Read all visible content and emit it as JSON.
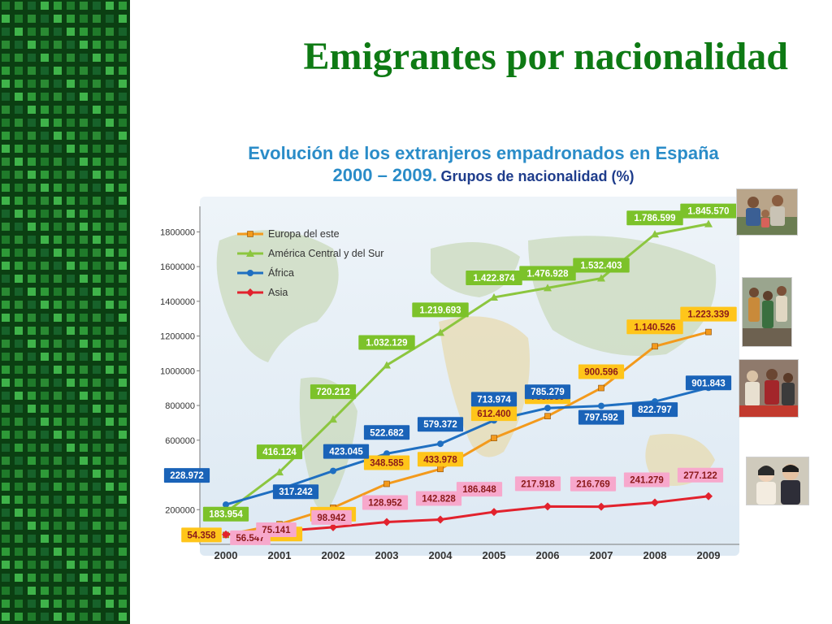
{
  "slide": {
    "title": "Emigrantes por nacionalidad"
  },
  "chart_heading": {
    "line1": "Evolución de los extranjeros empadronados en España",
    "line2_years": "2000 – 2009.",
    "line2_sub": "Grupos de nacionalidad (%)"
  },
  "colors": {
    "title_green": "#0e7a14",
    "europa": "#f39a1c",
    "america": "#8cc63f",
    "africa": "#1f6fc1",
    "asia": "#e2222d",
    "label_europa_bg": "#ffc51a",
    "label_america_bg": "#7cc22a",
    "label_africa_bg": "#1a63b8",
    "label_asia_bg": "#f7a8cc"
  },
  "chart_data": {
    "type": "line",
    "title": "Evolución de los extranjeros empadronados en España 2000 – 2009. Grupos de nacionalidad (%)",
    "x": [
      "2000",
      "2001",
      "2002",
      "2003",
      "2004",
      "2005",
      "2006",
      "2007",
      "2008",
      "2009"
    ],
    "ylim": [
      0,
      1900000
    ],
    "yticks": [
      0,
      200000,
      400000,
      600000,
      800000,
      1000000,
      1200000,
      1400000,
      1600000,
      1800000
    ],
    "ytick_labels": [
      "0",
      "200000",
      "400000",
      "600000",
      "800000",
      "1000000",
      "1200000",
      "1400000",
      "1600000",
      "1800000"
    ],
    "grid": false,
    "legend_position": "top-left",
    "series": [
      {
        "name": "Europa del este",
        "key": "europa",
        "marker": "square",
        "values": [
          54358,
          116095,
          211249,
          348585,
          433978,
          612400,
          738389,
          900596,
          1140526,
          1223339
        ],
        "labels": [
          "54.358",
          "116.095",
          "211.249",
          "348.585",
          "433.978",
          "612.400",
          "738.389",
          "900.596",
          "1.140.526",
          "1.223.339"
        ]
      },
      {
        "name": "América Central y del Sur",
        "key": "america",
        "marker": "triangle",
        "values": [
          183954,
          416124,
          720212,
          1032129,
          1219693,
          1422874,
          1476928,
          1532403,
          1786599,
          1845570
        ],
        "labels": [
          "183.954",
          "416.124",
          "720.212",
          "1.032.129",
          "1.219.693",
          "1.422.874",
          "1.476.928",
          "1.532.403",
          "1.786.599",
          "1.845.570"
        ]
      },
      {
        "name": "África",
        "key": "africa",
        "marker": "circle",
        "values": [
          228972,
          317242,
          423045,
          522682,
          579372,
          713974,
          785279,
          797592,
          822797,
          901843
        ],
        "labels": [
          "228.972",
          "317.242",
          "423.045",
          "522.682",
          "579.372",
          "713.974",
          "785.279",
          "797.592",
          "822.797",
          "901.843"
        ]
      },
      {
        "name": "Asia",
        "key": "asia",
        "marker": "diamond",
        "values": [
          56547,
          75141,
          98942,
          128952,
          142828,
          186848,
          217918,
          216769,
          241279,
          277122
        ],
        "labels": [
          "56.547",
          "75.141",
          "98.942",
          "128.952",
          "142.828",
          "186.848",
          "217.918",
          "216.769",
          "241.279",
          "277.122"
        ]
      }
    ]
  },
  "photos": [
    {
      "icon": "family-photo-icon"
    },
    {
      "icon": "group-photo-icon"
    },
    {
      "icon": "crowd-photo-icon"
    },
    {
      "icon": "couple-photo-icon"
    }
  ]
}
